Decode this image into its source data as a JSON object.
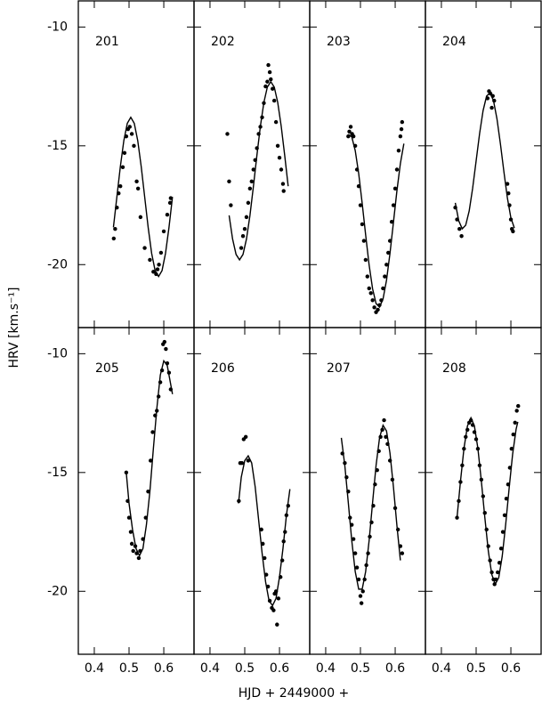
{
  "xlabel": "HJD + 2449000 +",
  "ylabel": "HRV [km.s⁻¹]",
  "chart_data": [
    {
      "type": "scatter",
      "title": "201",
      "color": "#000000",
      "xlim": [
        0.354,
        0.687
      ],
      "ylim": [
        -22.65,
        -8.9
      ],
      "xticks": [
        0.4,
        0.5,
        0.6
      ],
      "yticks": [
        -10,
        -15,
        -20
      ],
      "points": {
        "x": [
          0.456,
          0.46,
          0.465,
          0.47,
          0.475,
          0.482,
          0.487,
          0.492,
          0.497,
          0.502,
          0.508,
          0.514,
          0.522,
          0.526,
          0.533,
          0.545,
          0.56,
          0.57,
          0.578,
          0.582,
          0.586,
          0.592,
          0.6,
          0.61,
          0.618,
          0.62
        ],
        "y": [
          -18.9,
          -18.5,
          -17.6,
          -17.0,
          -16.7,
          -15.9,
          -15.3,
          -14.6,
          -14.3,
          -14.2,
          -14.5,
          -15.0,
          -16.5,
          -16.8,
          -18.0,
          -19.3,
          -19.8,
          -20.3,
          -20.4,
          -20.2,
          -20.0,
          -19.5,
          -18.6,
          -17.9,
          -17.4,
          -17.2
        ]
      },
      "curve": {
        "x": [
          0.455,
          0.465,
          0.475,
          0.485,
          0.495,
          0.505,
          0.515,
          0.525,
          0.535,
          0.545,
          0.555,
          0.565,
          0.575,
          0.585,
          0.595,
          0.605,
          0.615,
          0.625
        ],
        "y": [
          -18.43,
          -17.15,
          -15.87,
          -14.78,
          -14.05,
          -13.8,
          -14.05,
          -14.78,
          -15.87,
          -17.15,
          -18.43,
          -19.52,
          -20.25,
          -20.5,
          -20.25,
          -19.52,
          -18.43,
          -17.15
        ]
      }
    },
    {
      "type": "scatter",
      "title": "202",
      "color": "#000000",
      "xlim": [
        0.354,
        0.687
      ],
      "ylim": [
        -22.65,
        -8.9
      ],
      "xticks": [
        0.4,
        0.5,
        0.6
      ],
      "yticks": [
        -10,
        -15,
        -20
      ],
      "points": {
        "x": [
          0.45,
          0.455,
          0.46,
          0.49,
          0.495,
          0.5,
          0.505,
          0.51,
          0.515,
          0.52,
          0.525,
          0.53,
          0.535,
          0.54,
          0.545,
          0.55,
          0.555,
          0.56,
          0.565,
          0.568,
          0.572,
          0.575,
          0.58,
          0.585,
          0.59,
          0.595,
          0.6,
          0.605,
          0.61,
          0.612
        ],
        "y": [
          -14.5,
          -16.5,
          -17.5,
          -19.3,
          -18.8,
          -18.5,
          -18.0,
          -17.4,
          -16.8,
          -16.5,
          -16.0,
          -15.6,
          -15.1,
          -14.5,
          -14.2,
          -13.8,
          -13.2,
          -12.5,
          -12.3,
          -11.6,
          -11.9,
          -12.2,
          -12.6,
          -13.1,
          -14.0,
          -15.0,
          -15.5,
          -16.0,
          -16.6,
          -16.9
        ]
      },
      "curve": {
        "x": [
          0.455,
          0.465,
          0.475,
          0.485,
          0.495,
          0.505,
          0.515,
          0.525,
          0.535,
          0.545,
          0.555,
          0.565,
          0.575,
          0.585,
          0.595,
          0.605,
          0.615,
          0.625
        ],
        "y": [
          -17.93,
          -18.92,
          -19.57,
          -19.8,
          -19.57,
          -18.92,
          -17.93,
          -16.7,
          -15.4,
          -14.18,
          -13.18,
          -12.53,
          -12.3,
          -12.53,
          -13.18,
          -14.18,
          -15.4,
          -16.7
        ]
      }
    },
    {
      "type": "scatter",
      "title": "203",
      "color": "#000000",
      "xlim": [
        0.354,
        0.687
      ],
      "ylim": [
        -22.65,
        -8.9
      ],
      "xticks": [
        0.4,
        0.5,
        0.6
      ],
      "yticks": [
        -10,
        -15,
        -20
      ],
      "points": {
        "x": [
          0.465,
          0.468,
          0.472,
          0.476,
          0.48,
          0.485,
          0.49,
          0.495,
          0.5,
          0.505,
          0.51,
          0.515,
          0.52,
          0.525,
          0.53,
          0.535,
          0.54,
          0.545,
          0.55,
          0.555,
          0.56,
          0.565,
          0.57,
          0.575,
          0.58,
          0.585,
          0.59,
          0.595,
          0.6,
          0.605,
          0.61,
          0.615,
          0.618,
          0.62
        ],
        "y": [
          -14.6,
          -14.4,
          -14.2,
          -14.5,
          -14.6,
          -15.0,
          -16.0,
          -16.7,
          -17.5,
          -18.3,
          -19.0,
          -19.8,
          -20.5,
          -21.0,
          -21.2,
          -21.5,
          -21.8,
          -22.0,
          -21.9,
          -21.7,
          -21.5,
          -21.0,
          -20.5,
          -20.0,
          -19.5,
          -19.0,
          -18.2,
          -17.5,
          -16.8,
          -16.0,
          -15.2,
          -14.6,
          -14.3,
          -14.0
        ]
      },
      "curve": {
        "x": [
          0.465,
          0.475,
          0.485,
          0.495,
          0.505,
          0.515,
          0.525,
          0.535,
          0.545,
          0.555,
          0.565,
          0.575,
          0.585,
          0.595,
          0.605,
          0.615,
          0.625
        ],
        "y": [
          -14.52,
          -14.62,
          -15.2,
          -16.17,
          -17.42,
          -18.75,
          -20.02,
          -21.02,
          -21.64,
          -21.79,
          -21.45,
          -20.66,
          -19.53,
          -18.22,
          -16.89,
          -15.74,
          -14.91
        ]
      }
    },
    {
      "type": "scatter",
      "title": "204",
      "color": "#000000",
      "xlim": [
        0.354,
        0.687
      ],
      "ylim": [
        -22.65,
        -8.9
      ],
      "xticks": [
        0.4,
        0.5,
        0.6
      ],
      "yticks": [
        -10,
        -15,
        -20
      ],
      "points": {
        "x": [
          0.44,
          0.445,
          0.452,
          0.458,
          0.533,
          0.537,
          0.541,
          0.545,
          0.548,
          0.552,
          0.59,
          0.593,
          0.596,
          0.6,
          0.603,
          0.606
        ],
        "y": [
          -17.6,
          -18.1,
          -18.5,
          -18.8,
          -13.0,
          -12.7,
          -12.8,
          -13.4,
          -12.9,
          -13.1,
          -16.6,
          -17.0,
          -17.5,
          -18.1,
          -18.5,
          -18.6
        ]
      },
      "curve": {
        "x": [
          0.44,
          0.45,
          0.46,
          0.47,
          0.48,
          0.49,
          0.5,
          0.51,
          0.52,
          0.53,
          0.54,
          0.55,
          0.56,
          0.57,
          0.58,
          0.59,
          0.6,
          0.61
        ],
        "y": [
          -17.4,
          -18.16,
          -18.49,
          -18.34,
          -17.74,
          -16.78,
          -15.63,
          -14.48,
          -13.52,
          -12.91,
          -12.77,
          -13.1,
          -13.87,
          -14.93,
          -16.1,
          -17.2,
          -18.03,
          -18.46
        ]
      }
    },
    {
      "type": "scatter",
      "title": "205",
      "color": "#000000",
      "xlim": [
        0.354,
        0.687
      ],
      "ylim": [
        -22.65,
        -8.9
      ],
      "xticks": [
        0.4,
        0.5,
        0.6
      ],
      "yticks": [
        -10,
        -15,
        -20
      ],
      "points": {
        "x": [
          0.492,
          0.496,
          0.5,
          0.505,
          0.508,
          0.512,
          0.518,
          0.522,
          0.528,
          0.532,
          0.54,
          0.548,
          0.555,
          0.562,
          0.568,
          0.575,
          0.58,
          0.585,
          0.59,
          0.595,
          0.598,
          0.602,
          0.606,
          0.61,
          0.615,
          0.62
        ],
        "y": [
          -15.0,
          -16.2,
          -16.9,
          -17.5,
          -18.0,
          -18.3,
          -18.1,
          -18.4,
          -18.6,
          -18.3,
          -17.8,
          -16.9,
          -15.8,
          -14.5,
          -13.3,
          -12.6,
          -12.4,
          -11.8,
          -11.2,
          -10.7,
          -9.6,
          -9.5,
          -9.8,
          -10.4,
          -10.8,
          -11.5
        ]
      },
      "curve": {
        "x": [
          0.492,
          0.5,
          0.51,
          0.52,
          0.53,
          0.54,
          0.55,
          0.56,
          0.57,
          0.58,
          0.59,
          0.6,
          0.61,
          0.62,
          0.625
        ],
        "y": [
          -15.0,
          -16.3,
          -17.4,
          -18.2,
          -18.5,
          -18.2,
          -17.2,
          -15.8,
          -14.0,
          -12.3,
          -10.9,
          -10.3,
          -10.5,
          -11.3,
          -11.7
        ]
      }
    },
    {
      "type": "scatter",
      "title": "206",
      "color": "#000000",
      "xlim": [
        0.354,
        0.687
      ],
      "ylim": [
        -22.65,
        -8.9
      ],
      "xticks": [
        0.4,
        0.5,
        0.6
      ],
      "yticks": [
        -10,
        -15,
        -20
      ],
      "points": {
        "x": [
          0.483,
          0.487,
          0.492,
          0.497,
          0.503,
          0.51,
          0.548,
          0.552,
          0.557,
          0.562,
          0.567,
          0.572,
          0.578,
          0.583,
          0.586,
          0.59,
          0.593,
          0.597,
          0.603,
          0.608,
          0.612,
          0.616,
          0.62,
          0.625
        ],
        "y": [
          -16.2,
          -14.6,
          -14.6,
          -13.6,
          -13.5,
          -14.5,
          -17.4,
          -18.0,
          -18.6,
          -19.3,
          -19.8,
          -20.4,
          -20.7,
          -20.8,
          -20.1,
          -20.0,
          -21.4,
          -20.3,
          -19.4,
          -18.7,
          -17.9,
          -17.5,
          -16.8,
          -16.4
        ]
      },
      "curve": {
        "x": [
          0.482,
          0.49,
          0.5,
          0.51,
          0.52,
          0.53,
          0.54,
          0.55,
          0.56,
          0.57,
          0.58,
          0.59,
          0.6,
          0.61,
          0.62,
          0.63
        ],
        "y": [
          -16.3,
          -15.2,
          -14.5,
          -14.3,
          -14.6,
          -15.6,
          -17.0,
          -18.4,
          -19.6,
          -20.4,
          -20.6,
          -20.3,
          -19.4,
          -18.2,
          -16.8,
          -15.7
        ]
      }
    },
    {
      "type": "scatter",
      "title": "207",
      "color": "#000000",
      "xlim": [
        0.354,
        0.687
      ],
      "ylim": [
        -22.65,
        -8.9
      ],
      "xticks": [
        0.4,
        0.5,
        0.6
      ],
      "yticks": [
        -10,
        -15,
        -20
      ],
      "points": {
        "x": [
          0.448,
          0.455,
          0.46,
          0.465,
          0.47,
          0.475,
          0.48,
          0.485,
          0.49,
          0.495,
          0.5,
          0.503,
          0.507,
          0.512,
          0.517,
          0.522,
          0.527,
          0.532,
          0.537,
          0.542,
          0.548,
          0.553,
          0.558,
          0.563,
          0.568,
          0.573,
          0.578,
          0.585,
          0.592,
          0.6,
          0.608,
          0.615,
          0.62
        ],
        "y": [
          -14.2,
          -14.6,
          -15.2,
          -15.8,
          -16.9,
          -17.2,
          -17.8,
          -18.4,
          -19.0,
          -19.5,
          -20.2,
          -20.5,
          -20.0,
          -19.5,
          -18.9,
          -18.4,
          -17.7,
          -17.1,
          -16.4,
          -15.5,
          -14.9,
          -14.1,
          -13.5,
          -13.2,
          -12.8,
          -13.5,
          -13.8,
          -14.5,
          -15.3,
          -16.5,
          -17.4,
          -18.1,
          -18.4
        ]
      },
      "curve": {
        "x": [
          0.445,
          0.455,
          0.465,
          0.475,
          0.485,
          0.495,
          0.505,
          0.515,
          0.525,
          0.535,
          0.545,
          0.555,
          0.565,
          0.575,
          0.585,
          0.595,
          0.605,
          0.615
        ],
        "y": [
          -13.54,
          -14.7,
          -16.26,
          -17.86,
          -19.17,
          -19.91,
          -19.91,
          -19.17,
          -17.86,
          -16.26,
          -14.7,
          -13.54,
          -13.01,
          -13.25,
          -14.18,
          -15.61,
          -17.24,
          -18.7
        ]
      }
    },
    {
      "type": "scatter",
      "title": "208",
      "color": "#000000",
      "xlim": [
        0.354,
        0.687
      ],
      "ylim": [
        -22.65,
        -8.9
      ],
      "xticks": [
        0.4,
        0.5,
        0.6
      ],
      "yticks": [
        -10,
        -15,
        -20
      ],
      "points": {
        "x": [
          0.445,
          0.45,
          0.455,
          0.46,
          0.465,
          0.47,
          0.475,
          0.48,
          0.485,
          0.49,
          0.495,
          0.5,
          0.505,
          0.51,
          0.515,
          0.52,
          0.525,
          0.53,
          0.535,
          0.54,
          0.545,
          0.55,
          0.553,
          0.557,
          0.562,
          0.567,
          0.572,
          0.577,
          0.582,
          0.587,
          0.592,
          0.597,
          0.602,
          0.607,
          0.612,
          0.617,
          0.621
        ],
        "y": [
          -16.9,
          -16.2,
          -15.4,
          -14.7,
          -14.0,
          -13.5,
          -13.2,
          -12.9,
          -12.8,
          -13.0,
          -13.3,
          -13.6,
          -14.0,
          -14.7,
          -15.3,
          -16.0,
          -16.7,
          -17.4,
          -18.1,
          -18.7,
          -19.2,
          -19.5,
          -19.7,
          -19.5,
          -19.2,
          -18.8,
          -18.2,
          -17.5,
          -16.8,
          -16.1,
          -15.5,
          -14.8,
          -14.0,
          -13.4,
          -12.9,
          -12.4,
          -12.2
        ]
      },
      "curve": {
        "x": [
          0.445,
          0.455,
          0.465,
          0.475,
          0.485,
          0.495,
          0.505,
          0.515,
          0.525,
          0.535,
          0.545,
          0.555,
          0.565,
          0.575,
          0.585,
          0.595,
          0.605,
          0.615,
          0.62
        ],
        "y": [
          -16.89,
          -15.36,
          -13.98,
          -13.04,
          -12.7,
          -13.04,
          -13.98,
          -15.36,
          -16.89,
          -18.3,
          -19.29,
          -19.7,
          -19.43,
          -18.53,
          -17.19,
          -15.66,
          -14.23,
          -13.18,
          -12.87
        ]
      }
    }
  ]
}
